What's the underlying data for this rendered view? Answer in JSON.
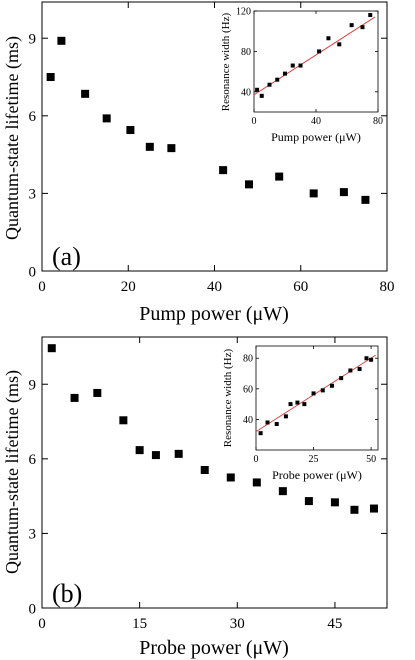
{
  "chart_data": [
    {
      "type": "scatter",
      "panel_label": "(a)",
      "xlabel": "Pump power (μW)",
      "ylabel": "Quantum-state lifetime (ms)",
      "xlim": [
        0,
        80
      ],
      "ylim": [
        0,
        10.4
      ],
      "xticks": [
        "0",
        "20",
        "40",
        "60",
        "80"
      ],
      "yticks": [
        "0",
        "3",
        "6",
        "9"
      ],
      "grid": false,
      "series": [
        {
          "x": [
            2,
            4.5,
            10,
            15,
            20.5,
            25,
            30,
            42,
            48,
            55,
            63,
            70,
            75
          ],
          "y": [
            7.5,
            8.9,
            6.85,
            5.9,
            5.45,
            4.8,
            4.75,
            3.9,
            3.35,
            3.65,
            3.0,
            3.05,
            2.75
          ]
        }
      ],
      "inset": {
        "type": "scatter",
        "xlabel": "Pump power (μW)",
        "ylabel": "Resonance width (Hz)",
        "xlim": [
          0,
          80
        ],
        "ylim": [
          20,
          120
        ],
        "xticks": [
          "0",
          "40",
          "80"
        ],
        "yticks": [
          "40",
          "80",
          "120"
        ],
        "series": [
          {
            "x": [
              2,
              5,
              10,
              15,
              20,
              25,
              30,
              42,
              48,
              55,
              63,
              70,
              75
            ],
            "y": [
              42,
              36,
              47,
              52,
              58,
              66,
              66,
              80,
              93,
              87,
              106,
              104,
              116
            ]
          }
        ],
        "fit_line": {
          "color": "#e03a3a",
          "x": [
            0,
            78
          ],
          "y": [
            37,
            114
          ]
        }
      }
    },
    {
      "type": "scatter",
      "panel_label": "(b)",
      "xlabel": "Probe power (μW)",
      "ylabel": "Quantum-state lifetime (ms)",
      "xlim": [
        0,
        53
      ],
      "ylim": [
        0,
        10.9
      ],
      "xticks": [
        "0",
        "15",
        "30",
        "45"
      ],
      "yticks": [
        "0",
        "3",
        "6",
        "9"
      ],
      "grid": false,
      "series": [
        {
          "x": [
            1.5,
            5,
            8.5,
            12.5,
            15,
            17.5,
            21,
            25,
            29,
            33,
            37,
            41,
            45,
            48,
            51
          ],
          "y": [
            10.45,
            8.45,
            8.65,
            7.55,
            6.35,
            6.15,
            6.2,
            5.55,
            5.25,
            5.05,
            4.7,
            4.3,
            4.25,
            3.95,
            4.0
          ]
        }
      ],
      "inset": {
        "type": "scatter",
        "xlabel": "Probe power (μW)",
        "ylabel": "Resonance width (Hz)",
        "xlim": [
          0,
          53
        ],
        "ylim": [
          20,
          88
        ],
        "xticks": [
          "0",
          "25",
          "50"
        ],
        "yticks": [
          "40",
          "60",
          "80"
        ],
        "series": [
          {
            "x": [
              2,
              5,
              9,
              13,
              15,
              18,
              21,
              25,
              29,
              33,
              37,
              41,
              45,
              48,
              50
            ],
            "y": [
              31,
              38,
              37,
              42,
              50,
              51,
              50,
              57,
              59,
              62,
              67,
              72,
              73,
              80,
              79
            ]
          }
        ],
        "fit_line": {
          "color": "#e03a3a",
          "x": [
            0,
            52
          ],
          "y": [
            32,
            82
          ]
        }
      }
    }
  ]
}
